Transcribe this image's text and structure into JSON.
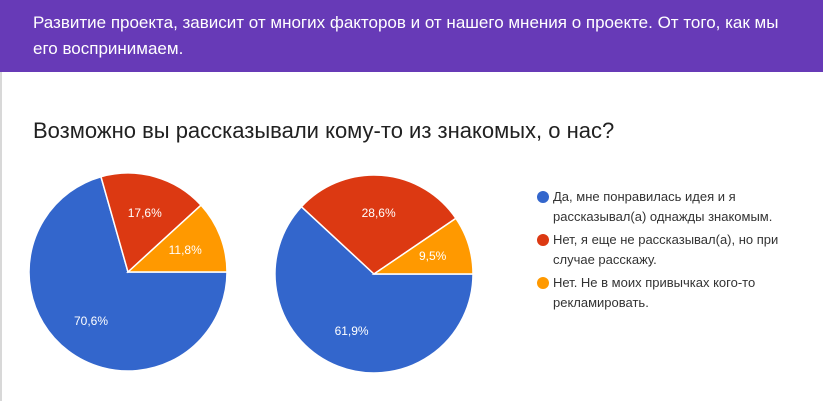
{
  "header": {
    "text": "Развитие проекта, зависит от многих факторов и от нашего мнения о проекте. От того, как мы его воспринимаем."
  },
  "question": "Возможно вы рассказывали кому-то из знакомых, о нас?",
  "chart_data": [
    {
      "type": "pie",
      "categories": [
        "Да, мне понравилась идея и я рассказывал(а) однажды знакомым.",
        "Нет, я еще не рассказывал(а), но при случае расскажу.",
        "Нет. Не в моих привычках кого-то рекламировать."
      ],
      "values": [
        70.6,
        17.6,
        11.8
      ],
      "labels": [
        "70,6%",
        "17,6%",
        "11,8%"
      ],
      "colors": [
        "#3366cc",
        "#dc3912",
        "#ff9900"
      ]
    },
    {
      "type": "pie",
      "categories": [
        "Да, мне понравилась идея и я рассказывал(а) однажды знакомым.",
        "Нет, я еще не рассказывал(а), но при случае расскажу.",
        "Нет. Не в моих привычках кого-то рекламировать."
      ],
      "values": [
        61.9,
        28.6,
        9.5
      ],
      "labels": [
        "61,9%",
        "28,6%",
        "9,5%"
      ],
      "colors": [
        "#3366cc",
        "#dc3912",
        "#ff9900"
      ]
    }
  ],
  "legend": [
    {
      "label": "Да, мне понравилась идея и я рассказывал(а) однажды знакомым.",
      "color": "#3366cc"
    },
    {
      "label": "Нет, я еще не рассказывал(а), но при случае расскажу.",
      "color": "#dc3912"
    },
    {
      "label": "Нет. Не в моих привычках кого-то рекламировать.",
      "color": "#ff9900"
    }
  ]
}
